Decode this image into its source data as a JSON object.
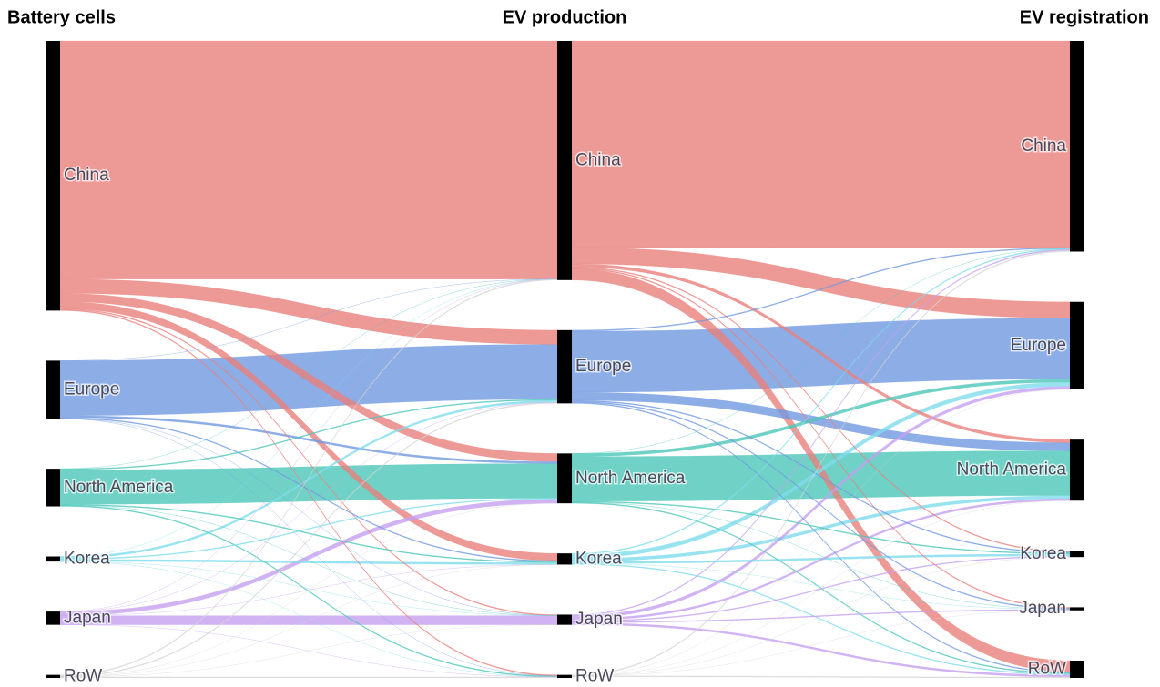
{
  "chart_data": {
    "type": "sankey",
    "columns": [
      {
        "title": "Battery cells",
        "nodes": [
          "China",
          "Europe",
          "North America",
          "Korea",
          "Japan",
          "RoW"
        ]
      },
      {
        "title": "EV production",
        "nodes": [
          "China",
          "Europe",
          "North America",
          "Korea",
          "Japan",
          "RoW"
        ]
      },
      {
        "title": "EV registration",
        "nodes": [
          "China",
          "Europe",
          "North America",
          "Korea",
          "Japan",
          "RoW"
        ]
      }
    ],
    "colors": [
      "#e8807c",
      "#7099e0",
      "#4cc7b8",
      "#7fdcec",
      "#c6a0f0",
      "#d4d4d4"
    ],
    "node_color": "#000000",
    "flows": [
      [
        [
          234,
          14,
          8,
          7,
          1,
          1
        ],
        [
          0,
          54,
          2,
          1,
          0,
          0
        ],
        [
          0,
          1,
          34,
          1,
          0,
          1
        ],
        [
          0,
          2,
          1,
          2,
          0,
          0
        ],
        [
          0,
          0,
          4,
          0,
          9,
          0
        ],
        [
          1,
          1,
          0,
          0,
          0,
          1
        ]
      ],
      [
        [
          203,
          16,
          3,
          1,
          1,
          11
        ],
        [
          1,
          60,
          8,
          1,
          1,
          1
        ],
        [
          0,
          3,
          44,
          1,
          0,
          1
        ],
        [
          1,
          4,
          3,
          2,
          0,
          1
        ],
        [
          1,
          3,
          2,
          1,
          1,
          2
        ],
        [
          1,
          0,
          0,
          0,
          0,
          1
        ]
      ]
    ]
  }
}
